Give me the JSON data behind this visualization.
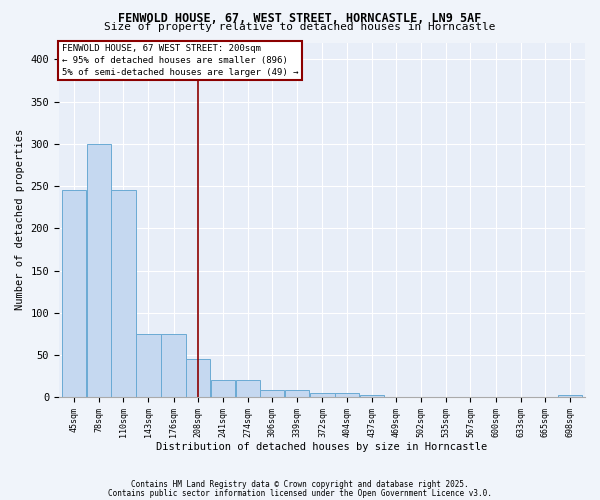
{
  "title1": "FENWOLD HOUSE, 67, WEST STREET, HORNCASTLE, LN9 5AF",
  "title2": "Size of property relative to detached houses in Horncastle",
  "xlabel": "Distribution of detached houses by size in Horncastle",
  "ylabel": "Number of detached properties",
  "bins": [
    45,
    78,
    110,
    143,
    176,
    208,
    241,
    274,
    306,
    339,
    372,
    404,
    437,
    469,
    502,
    535,
    567,
    600,
    633,
    665,
    698
  ],
  "heights": [
    245,
    300,
    245,
    75,
    75,
    45,
    20,
    20,
    8,
    8,
    5,
    5,
    3,
    0,
    0,
    0,
    0,
    0,
    0,
    0,
    3
  ],
  "bar_color": "#c5d8f0",
  "bar_edge_color": "#6aaad4",
  "red_line_color": "#8b0000",
  "red_line_x": 208,
  "ylim": [
    0,
    420
  ],
  "yticks": [
    0,
    50,
    100,
    150,
    200,
    250,
    300,
    350,
    400
  ],
  "bg_color": "#e8eef8",
  "grid_color": "#ffffff",
  "legend_text": "FENWOLD HOUSE, 67 WEST STREET: 200sqm\n← 95% of detached houses are smaller (896)\n5% of semi-detached houses are larger (49) →",
  "footer1": "Contains HM Land Registry data © Crown copyright and database right 2025.",
  "footer2": "Contains public sector information licensed under the Open Government Licence v3.0.",
  "fig_bg": "#f0f4fa"
}
